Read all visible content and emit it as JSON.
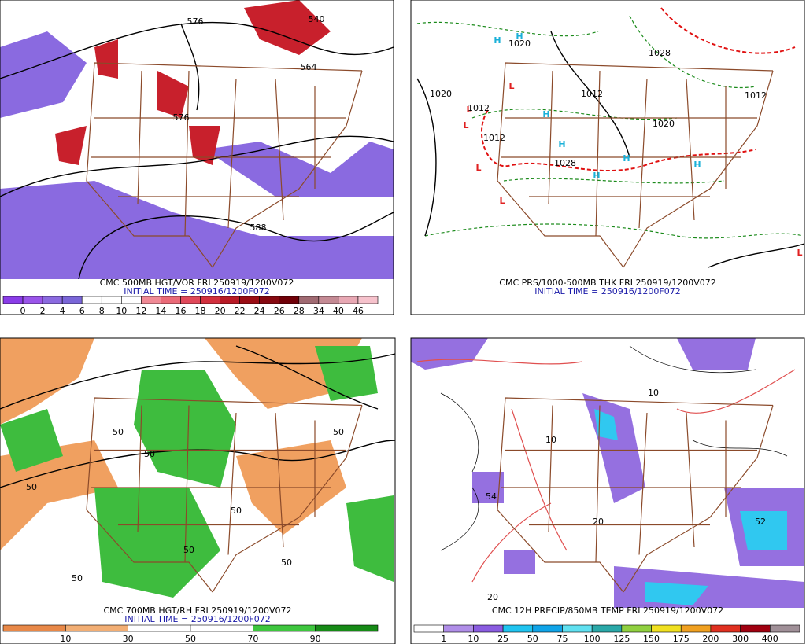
{
  "panels": [
    {
      "caption": "CMC 500MB HGT/VOR FRI 250919/1200V072",
      "initial": "INITIAL TIME = 250916/1200F072",
      "colorbar": {
        "labels": [
          "0",
          "2",
          "4",
          "6",
          "8",
          "10",
          "12",
          "14",
          "16",
          "18",
          "20",
          "22",
          "24",
          "26",
          "28",
          "34",
          "40",
          "46"
        ],
        "colors": [
          "#8a3ce8",
          "#9a55ea",
          "#8b6ae0",
          "#7a66d8",
          "#ffffff",
          "#ffffff",
          "#ffffff",
          "#f08a96",
          "#ea6a78",
          "#e0485a",
          "#d2303e",
          "#b81a26",
          "#9a0c14",
          "#860810",
          "#700008",
          "#a06a72",
          "#c48a94",
          "#e8a8b4",
          "#f6c2cc"
        ]
      },
      "map_labels": [
        "576",
        "540",
        "564",
        "576",
        "588"
      ]
    },
    {
      "caption": "CMC PRS/1000-500MB THK FRI 250919/1200V072",
      "initial": "INITIAL TIME = 250916/1200F072",
      "map_labels": [
        "1020",
        "1020",
        "1012",
        "1012",
        "1028",
        "1020",
        "1012",
        "1012",
        "1028",
        "H",
        "H",
        "H",
        "H",
        "H",
        "H",
        "H",
        "L",
        "L",
        "L",
        "L",
        "L",
        "L"
      ]
    },
    {
      "caption": "CMC 700MB HGT/RH FRI 250919/1200V072",
      "initial": "INITIAL TIME = 250916/1200F072",
      "colorbar": {
        "labels": [
          "10",
          "30",
          "50",
          "70",
          "90"
        ],
        "colors": [
          "#e88848",
          "#f2ae74",
          "#ffffff",
          "#ffffff",
          "#3ec63e",
          "#168a16"
        ]
      },
      "map_labels": [
        "50",
        "50",
        "50",
        "50",
        "50",
        "50",
        "50",
        "50"
      ]
    },
    {
      "caption": "CMC 12H PRECIP/850MB TEMP FRI 250919/1200V072",
      "colorbar": {
        "labels": [
          "1",
          "10",
          "25",
          "50",
          "75",
          "100",
          "125",
          "150",
          "175",
          "200",
          "300",
          "400"
        ],
        "colors": [
          "#ffffff",
          "#b08ee8",
          "#8a5ce0",
          "#20c4f0",
          "#10a4e8",
          "#60e0f0",
          "#2aa8a8",
          "#90d040",
          "#f0e020",
          "#f0a020",
          "#e03020",
          "#a00010",
          "#a09098"
        ]
      },
      "map_labels": [
        "54",
        "52",
        "10",
        "20",
        "10",
        "20"
      ]
    }
  ]
}
